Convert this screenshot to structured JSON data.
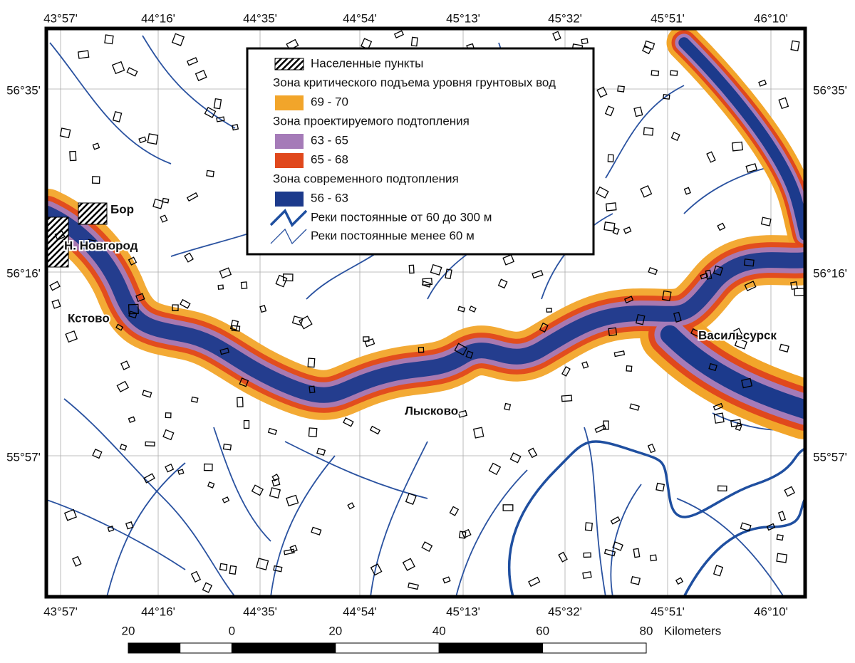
{
  "map": {
    "top_longitude_labels": [
      "43°57'",
      "44°16'",
      "44°35'",
      "44°54'",
      "45°13'",
      "45°32'",
      "45°51'",
      "46°10'"
    ],
    "bottom_longitude_labels": [
      "43°57'",
      "44°16'",
      "44°35'",
      "44°54'",
      "45°13'",
      "45°32'",
      "45°51'",
      "46°10'"
    ],
    "left_latitude_labels": [
      "56°35'",
      "56°16'",
      "55°57'"
    ],
    "right_latitude_labels": [
      "56°35'",
      "56°16'",
      "55°57'"
    ],
    "legend": {
      "items": [
        {
          "label": "Населенные пункты",
          "symbol": "hatch"
        },
        {
          "label": "Зона критического подъема уровня грунтовых вод",
          "symbol": "heading"
        },
        {
          "label": "69 - 70",
          "symbol": "swatch",
          "color": "#f2a52a"
        },
        {
          "label": "Зона проектируемого подтопления",
          "symbol": "heading"
        },
        {
          "label": "63 - 65",
          "symbol": "swatch",
          "color": "#a57bb8"
        },
        {
          "label": "65 - 68",
          "symbol": "swatch",
          "color": "#e0481c"
        },
        {
          "label": "Зона современного подтопления",
          "symbol": "heading"
        },
        {
          "label": "56 - 63",
          "symbol": "swatch",
          "color": "#1c3a8c"
        },
        {
          "label": "Реки постоянные от 60 до 300 м",
          "symbol": "river-thick"
        },
        {
          "label": "Реки постоянные менее 60 м",
          "symbol": "river-thin"
        }
      ]
    },
    "places": [
      "Бор",
      "Н. Новгород",
      "Кстово",
      "Лысково",
      "Васильсурск"
    ],
    "scale_bar": {
      "labels": [
        "20",
        "0",
        "20",
        "40",
        "60",
        "80"
      ],
      "unit": "Kilometers"
    }
  }
}
